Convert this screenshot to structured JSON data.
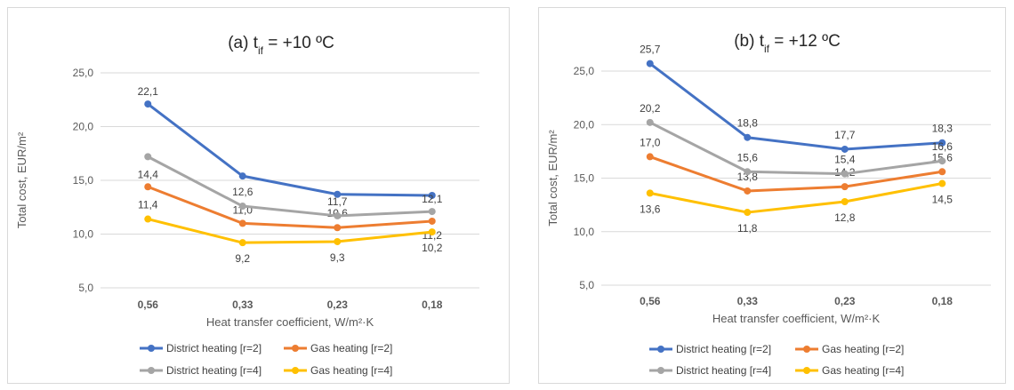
{
  "chart_data": [
    {
      "type": "line",
      "title": "(a) t",
      "title_sub": "if",
      "title_suffix": " = +10 ºC",
      "xlabel": "Heat transfer coefficient, W/m²·K",
      "ylabel": "Total cost, EUR/m²",
      "categories": [
        "0,56",
        "0,33",
        "0,23",
        "0,18"
      ],
      "yticks": [
        "5,0",
        "10,0",
        "15,0",
        "20,0",
        "25,0"
      ],
      "ylim": [
        5,
        25
      ],
      "grid": true,
      "legend_position": "bottom",
      "series": [
        {
          "name": "District heating [r=2]",
          "color": "#4472c4",
          "values": [
            22.1,
            15.4,
            13.7,
            13.6
          ],
          "labels": [
            "22,1",
            "",
            "",
            ""
          ]
        },
        {
          "name": "Gas heating [r=2]",
          "color": "#ed7d31",
          "values": [
            14.4,
            11.0,
            10.6,
            11.2
          ],
          "labels": [
            "14,4",
            "11,0",
            "10,6",
            "11,2"
          ]
        },
        {
          "name": "District heating [r=4]",
          "color": "#a5a5a5",
          "values": [
            17.2,
            12.6,
            11.7,
            12.1
          ],
          "labels": [
            "",
            "12,6",
            "11,7",
            "12,1"
          ]
        },
        {
          "name": "Gas heating [r=4]",
          "color": "#ffc000",
          "values": [
            11.4,
            9.2,
            9.3,
            10.2
          ],
          "labels": [
            "11,4",
            "9,2",
            "9,3",
            "10,2"
          ]
        }
      ]
    },
    {
      "type": "line",
      "title": "(b) t",
      "title_sub": "if",
      "title_suffix": " = +12 ºC",
      "xlabel": "Heat transfer coefficient, W/m²·K",
      "ylabel": "Total cost, EUR/m²",
      "categories": [
        "0,56",
        "0,33",
        "0,23",
        "0,18"
      ],
      "yticks": [
        "5,0",
        "10,0",
        "15,0",
        "20,0",
        "25,0"
      ],
      "ylim": [
        5,
        25
      ],
      "grid": true,
      "legend_position": "bottom",
      "series": [
        {
          "name": "District heating [r=2]",
          "color": "#4472c4",
          "values": [
            25.7,
            18.8,
            17.7,
            18.3
          ],
          "labels": [
            "25,7",
            "18,8",
            "17,7",
            "18,3"
          ]
        },
        {
          "name": "Gas heating [r=2]",
          "color": "#ed7d31",
          "values": [
            17.0,
            13.8,
            14.2,
            15.6
          ],
          "labels": [
            "17,0",
            "13,8",
            "14,2",
            "15,6"
          ]
        },
        {
          "name": "District heating [r=4]",
          "color": "#a5a5a5",
          "values": [
            20.2,
            15.6,
            15.4,
            16.6
          ],
          "labels": [
            "20,2",
            "15,6",
            "15,4",
            "16,6"
          ]
        },
        {
          "name": "Gas heating [r=4]",
          "color": "#ffc000",
          "values": [
            13.6,
            11.8,
            12.8,
            14.5
          ],
          "labels": [
            "13,6",
            "11,8",
            "12,8",
            "14,5"
          ]
        }
      ]
    }
  ]
}
